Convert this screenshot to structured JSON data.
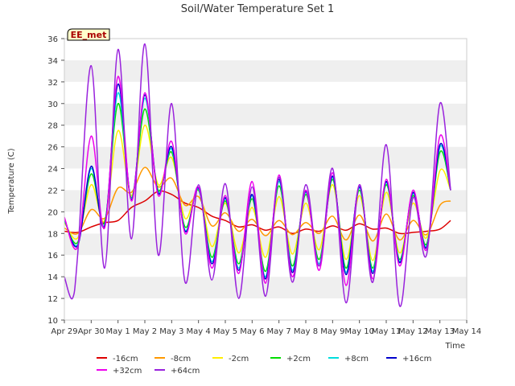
{
  "chart_data": {
    "type": "line",
    "title": "Soil/Water Temperature Set 1",
    "xlabel": "Time",
    "ylabel": "Temperature (C)",
    "station_label": "EE_met",
    "xlim": [
      0,
      15
    ],
    "ylim": [
      10,
      36
    ],
    "yticks": [
      10,
      12,
      14,
      16,
      18,
      20,
      22,
      24,
      26,
      28,
      30,
      32,
      34,
      36
    ],
    "xticks": [
      {
        "pos": 0,
        "label": "Apr 29"
      },
      {
        "pos": 1,
        "label": "Apr 30"
      },
      {
        "pos": 2,
        "label": "May 1"
      },
      {
        "pos": 3,
        "label": "May 2"
      },
      {
        "pos": 4,
        "label": "May 3"
      },
      {
        "pos": 5,
        "label": "May 4"
      },
      {
        "pos": 6,
        "label": "May 5"
      },
      {
        "pos": 7,
        "label": "May 6"
      },
      {
        "pos": 8,
        "label": "May 7"
      },
      {
        "pos": 9,
        "label": "May 8"
      },
      {
        "pos": 10,
        "label": "May 9"
      },
      {
        "pos": 11,
        "label": "May 10"
      },
      {
        "pos": 12,
        "label": "May 11"
      },
      {
        "pos": 13,
        "label": "May 12"
      },
      {
        "pos": 14,
        "label": "May 13"
      },
      {
        "pos": 15,
        "label": "May 14"
      }
    ],
    "grid": "horizontal-bands",
    "legend_position": "bottom",
    "series": [
      {
        "name": "-16cm",
        "color": "#dd0000",
        "x": [
          0,
          0.5,
          1,
          1.5,
          2,
          2.5,
          3,
          3.5,
          4,
          4.5,
          5,
          5.5,
          6,
          6.5,
          7,
          7.5,
          8,
          8.5,
          9,
          9.5,
          10,
          10.5,
          11,
          11.5,
          12,
          12.5,
          13,
          13.5,
          14,
          14.4
        ],
        "y": [
          18.2,
          18.1,
          18.6,
          19.0,
          19.2,
          20.4,
          21.0,
          21.9,
          21.6,
          20.8,
          20.4,
          19.6,
          19.2,
          18.6,
          18.8,
          18.3,
          18.6,
          18.0,
          18.4,
          18.2,
          18.7,
          18.3,
          18.9,
          18.4,
          18.5,
          18.0,
          18.1,
          18.2,
          18.4,
          19.2
        ]
      },
      {
        "name": "-8cm",
        "color": "#ff9900",
        "x": [
          0,
          0.5,
          1,
          1.5,
          2,
          2.5,
          3,
          3.5,
          4,
          4.5,
          5,
          5.5,
          6,
          6.5,
          7,
          7.5,
          8,
          8.5,
          9,
          9.5,
          10,
          10.5,
          11,
          11.5,
          12,
          12.5,
          13,
          13.5,
          14,
          14.4
        ],
        "y": [
          18.5,
          18.0,
          20.2,
          19.4,
          22.2,
          21.8,
          24.1,
          22.3,
          23.1,
          20.6,
          21.4,
          18.7,
          19.9,
          18.2,
          19.3,
          17.8,
          19.2,
          17.9,
          19.0,
          18.0,
          19.6,
          17.4,
          19.7,
          17.3,
          19.8,
          17.4,
          19.2,
          17.9,
          20.6,
          21.0
        ]
      },
      {
        "name": "-2cm",
        "color": "#ffee00",
        "x": [
          0,
          0.5,
          1,
          1.5,
          2,
          2.5,
          3,
          3.5,
          4,
          4.5,
          5,
          5.5,
          6,
          6.5,
          7,
          7.5,
          8,
          8.5,
          9,
          9.5,
          10,
          10.5,
          11,
          11.5,
          12,
          12.5,
          13,
          13.5,
          14,
          14.4
        ],
        "y": [
          19.0,
          17.6,
          22.5,
          19.2,
          27.5,
          21.5,
          28.0,
          22.5,
          25.0,
          19.4,
          22.0,
          16.8,
          20.8,
          16.2,
          20.4,
          15.8,
          21.4,
          16.1,
          20.8,
          16.5,
          22.5,
          15.6,
          21.5,
          15.5,
          21.8,
          16.2,
          20.8,
          17.6,
          23.8,
          22.0
        ]
      },
      {
        "name": "+2cm",
        "color": "#00dd00",
        "x": [
          0,
          0.5,
          1,
          1.5,
          2,
          2.5,
          3,
          3.5,
          4,
          4.5,
          5,
          5.5,
          6,
          6.5,
          7,
          7.5,
          8,
          8.5,
          9,
          9.5,
          10,
          10.5,
          11,
          11.5,
          12,
          12.5,
          13,
          13.5,
          14,
          14.4
        ],
        "y": [
          19.2,
          17.2,
          23.5,
          19.0,
          30.0,
          21.3,
          29.5,
          22.0,
          25.5,
          18.6,
          22.0,
          15.8,
          21.0,
          15.2,
          21.2,
          14.5,
          22.4,
          15.0,
          21.6,
          15.6,
          23.0,
          14.8,
          22.0,
          14.8,
          22.5,
          15.6,
          21.5,
          17.0,
          25.5,
          22.0
        ]
      },
      {
        "name": "+8cm",
        "color": "#00dddd",
        "x": [
          0,
          0.5,
          1,
          1.5,
          2,
          2.5,
          3,
          3.5,
          4,
          4.5,
          5,
          5.5,
          6,
          6.5,
          7,
          7.5,
          8,
          8.5,
          9,
          9.5,
          10,
          10.5,
          11,
          11.5,
          12,
          12.5,
          13,
          13.5,
          14,
          14.4
        ],
        "y": [
          19.3,
          17.0,
          24.0,
          18.8,
          31.0,
          21.2,
          30.5,
          21.8,
          25.8,
          18.3,
          22.1,
          15.4,
          21.2,
          14.8,
          21.5,
          14.0,
          22.8,
          14.6,
          21.8,
          15.2,
          23.2,
          14.4,
          22.2,
          14.5,
          22.7,
          15.4,
          21.7,
          16.8,
          26.0,
          22.0
        ]
      },
      {
        "name": "+16cm",
        "color": "#0000cc",
        "x": [
          0,
          0.5,
          1,
          1.5,
          2,
          2.5,
          3,
          3.5,
          4,
          4.5,
          5,
          5.5,
          6,
          6.5,
          7,
          7.5,
          8,
          8.5,
          9,
          9.5,
          10,
          10.5,
          11,
          11.5,
          12,
          12.5,
          13,
          13.5,
          14,
          14.4
        ],
        "y": [
          19.4,
          16.9,
          24.2,
          18.7,
          31.8,
          21.1,
          30.8,
          21.7,
          26.0,
          18.2,
          22.2,
          15.2,
          21.3,
          14.6,
          21.6,
          13.8,
          23.0,
          14.4,
          21.9,
          15.0,
          23.3,
          14.2,
          22.3,
          14.3,
          22.8,
          15.3,
          21.8,
          16.7,
          26.2,
          22.0
        ]
      },
      {
        "name": "+32cm",
        "color": "#ee00ee",
        "x": [
          0,
          0.5,
          1,
          1.5,
          2,
          2.5,
          3,
          3.5,
          4,
          4.5,
          5,
          5.5,
          6,
          6.5,
          7,
          7.5,
          8,
          8.5,
          9,
          9.5,
          10,
          10.5,
          11,
          11.5,
          12,
          12.5,
          13,
          13.5,
          14,
          14.4
        ],
        "y": [
          19.5,
          16.8,
          27.0,
          18.5,
          32.5,
          21.0,
          31.0,
          21.5,
          26.5,
          18.0,
          22.3,
          14.8,
          21.5,
          14.3,
          22.8,
          13.4,
          23.4,
          14.0,
          22.0,
          14.6,
          23.6,
          13.2,
          22.5,
          13.8,
          23.0,
          15.0,
          22.0,
          16.5,
          27.0,
          22.0
        ]
      },
      {
        "name": "+64cm",
        "color": "#9922dd",
        "x": [
          0,
          0.3,
          0.5,
          1,
          1.5,
          2,
          2.5,
          3,
          3.5,
          4,
          4.5,
          5,
          5.5,
          6,
          6.5,
          7,
          7.5,
          8,
          8.5,
          9,
          9.5,
          10,
          10.5,
          11,
          11.5,
          12,
          12.5,
          13,
          13.5,
          14,
          14.4
        ],
        "y": [
          14.0,
          12.0,
          16.2,
          33.5,
          14.8,
          35.0,
          17.5,
          35.5,
          16.0,
          30.0,
          13.5,
          22.5,
          13.7,
          22.6,
          12.0,
          22.3,
          12.2,
          23.2,
          13.5,
          22.5,
          15.0,
          24.0,
          11.6,
          22.5,
          13.5,
          26.2,
          11.3,
          21.3,
          16.0,
          30.0,
          22.0
        ]
      }
    ]
  }
}
